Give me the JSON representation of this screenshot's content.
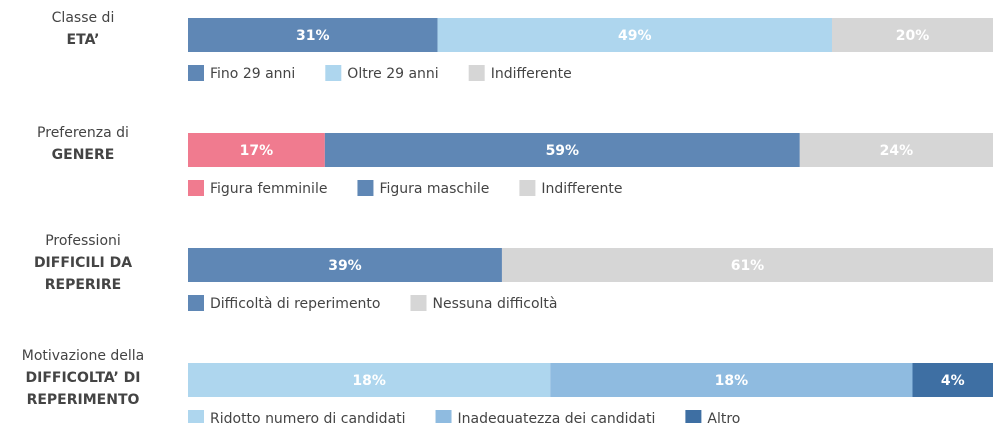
{
  "chart_data": [
    {
      "type": "bar",
      "stacked": true,
      "orientation": "horizontal",
      "label_lines": [
        "Classe di"
      ],
      "label_bold_lines": [
        "ETA’"
      ],
      "xlim": [
        0,
        100
      ],
      "series": [
        {
          "name": "Fino 29 anni",
          "color": "#5f87b5",
          "values": [
            31
          ],
          "value_labels": [
            "31%"
          ]
        },
        {
          "name": "Oltre 29 anni",
          "color": "#aed6ee",
          "values": [
            49
          ],
          "value_labels": [
            "49%"
          ]
        },
        {
          "name": "Indifferente",
          "color": "#d6d6d6",
          "values": [
            20
          ],
          "value_labels": [
            "20%"
          ]
        }
      ]
    },
    {
      "type": "bar",
      "stacked": true,
      "orientation": "horizontal",
      "label_lines": [
        "Preferenza di"
      ],
      "label_bold_lines": [
        "GENERE"
      ],
      "xlim": [
        0,
        100
      ],
      "series": [
        {
          "name": "Figura femminile",
          "color": "#f07b8f",
          "values": [
            17
          ],
          "value_labels": [
            "17%"
          ]
        },
        {
          "name": "Figura maschile",
          "color": "#5f87b5",
          "values": [
            59
          ],
          "value_labels": [
            "59%"
          ]
        },
        {
          "name": "Indifferente",
          "color": "#d6d6d6",
          "values": [
            24
          ],
          "value_labels": [
            "24%"
          ]
        }
      ]
    },
    {
      "type": "bar",
      "stacked": true,
      "orientation": "horizontal",
      "label_lines": [
        "Professioni"
      ],
      "label_bold_lines": [
        "DIFFICILI DA",
        "REPERIRE"
      ],
      "xlim": [
        0,
        100
      ],
      "series": [
        {
          "name": "Difficoltà di reperimento",
          "color": "#5f87b5",
          "values": [
            39
          ],
          "value_labels": [
            "39%"
          ]
        },
        {
          "name": "Nessuna difficoltà",
          "color": "#d6d6d6",
          "values": [
            61
          ],
          "value_labels": [
            "61%"
          ]
        }
      ]
    },
    {
      "type": "bar",
      "stacked": true,
      "orientation": "horizontal",
      "label_lines": [
        "Motivazione della"
      ],
      "label_bold_lines": [
        "DIFFICOLTA’ DI",
        "REPERIMENTO"
      ],
      "xlim": [
        0,
        40
      ],
      "series": [
        {
          "name": "Ridotto numero di candidati",
          "color": "#aed6ee",
          "values": [
            18
          ],
          "value_labels": [
            "18%"
          ]
        },
        {
          "name": "Inadeguatezza dei candidati",
          "color": "#8fbbe0",
          "values": [
            18
          ],
          "value_labels": [
            "18%"
          ]
        },
        {
          "name": "Altro",
          "color": "#3e6fa3",
          "values": [
            4
          ],
          "value_labels": [
            "4%"
          ]
        }
      ]
    }
  ]
}
